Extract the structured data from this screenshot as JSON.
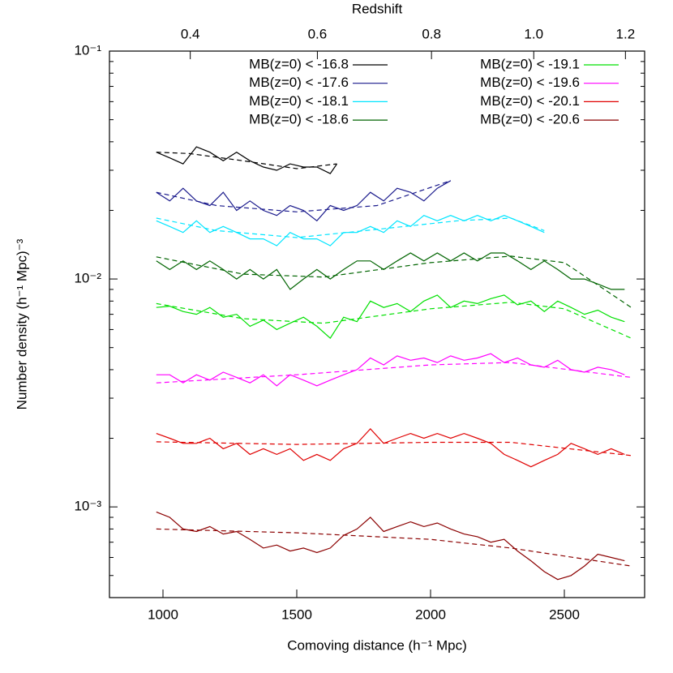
{
  "chart_data": {
    "type": "line",
    "title": "Redshift",
    "xlabel": "Comoving distance (h⁻¹ Mpc)",
    "ylabel": "Number density (h⁻¹ Mpc)⁻³",
    "xlim": [
      800,
      2800
    ],
    "xticks": [
      1000,
      1500,
      2000,
      2500
    ],
    "x2ticks": [
      0.4,
      0.6,
      0.8,
      {
        "value": 1,
        "label": "1.0"
      },
      1.2
    ],
    "ylim": [
      0.0004,
      0.1
    ],
    "log_y": true,
    "yticks": [
      {
        "value": 0.1,
        "label": "10⁻¹"
      },
      {
        "value": 0.01,
        "label": "10⁻²"
      },
      {
        "value": 0.001,
        "label": "10⁻³"
      }
    ],
    "yminorticks": [
      0.0005,
      0.0006,
      0.0007,
      0.0008,
      0.0009,
      0.002,
      0.003,
      0.004,
      0.005,
      0.006,
      0.007,
      0.008,
      0.009,
      0.02,
      0.03,
      0.04,
      0.05,
      0.06,
      0.07,
      0.08,
      0.09
    ],
    "legend": "top",
    "series": [
      {
        "name": "MB(z=0)  < -16.8",
        "color": "#000000",
        "x": [
          975,
          1025,
          1075,
          1125,
          1175,
          1225,
          1275,
          1325,
          1375,
          1425,
          1475,
          1525,
          1575,
          1625,
          1650
        ],
        "values": [
          0.036,
          0.034,
          0.032,
          0.038,
          0.036,
          0.033,
          0.036,
          0.033,
          0.031,
          0.03,
          0.032,
          0.031,
          0.031,
          0.029,
          0.032
        ]
      },
      {
        "name": "MB(z=0)  < -17.6",
        "color": "#1a1a8c",
        "x": [
          975,
          1025,
          1075,
          1125,
          1175,
          1225,
          1275,
          1325,
          1375,
          1425,
          1475,
          1525,
          1575,
          1625,
          1675,
          1725,
          1775,
          1825,
          1875,
          1925,
          1975,
          2025,
          2075
        ],
        "values": [
          0.024,
          0.022,
          0.025,
          0.022,
          0.021,
          0.024,
          0.02,
          0.022,
          0.02,
          0.019,
          0.021,
          0.02,
          0.018,
          0.021,
          0.02,
          0.021,
          0.024,
          0.022,
          0.025,
          0.024,
          0.022,
          0.025,
          0.027
        ]
      },
      {
        "name": "MB(z=0)  < -18.1",
        "color": "#00e5ff",
        "x": [
          975,
          1025,
          1075,
          1125,
          1175,
          1225,
          1275,
          1325,
          1375,
          1425,
          1475,
          1525,
          1575,
          1625,
          1675,
          1725,
          1775,
          1825,
          1875,
          1925,
          1975,
          2025,
          2075,
          2125,
          2175,
          2225,
          2275,
          2325,
          2375,
          2425
        ],
        "values": [
          0.018,
          0.017,
          0.016,
          0.018,
          0.016,
          0.017,
          0.016,
          0.015,
          0.015,
          0.014,
          0.016,
          0.015,
          0.015,
          0.014,
          0.016,
          0.016,
          0.017,
          0.016,
          0.018,
          0.017,
          0.019,
          0.018,
          0.019,
          0.018,
          0.019,
          0.018,
          0.019,
          0.018,
          0.017,
          0.016
        ]
      },
      {
        "name": "MB(z=0)  < -18.6",
        "color": "#006400",
        "x": [
          975,
          1025,
          1075,
          1125,
          1175,
          1225,
          1275,
          1325,
          1375,
          1425,
          1475,
          1525,
          1575,
          1625,
          1675,
          1725,
          1775,
          1825,
          1875,
          1925,
          1975,
          2025,
          2075,
          2125,
          2175,
          2225,
          2275,
          2325,
          2375,
          2425,
          2475,
          2525,
          2575,
          2625,
          2675,
          2725
        ],
        "values": [
          0.012,
          0.011,
          0.012,
          0.011,
          0.012,
          0.011,
          0.01,
          0.011,
          0.01,
          0.011,
          0.009,
          0.01,
          0.011,
          0.01,
          0.011,
          0.012,
          0.012,
          0.011,
          0.012,
          0.013,
          0.012,
          0.013,
          0.012,
          0.013,
          0.012,
          0.013,
          0.013,
          0.012,
          0.011,
          0.012,
          0.011,
          0.01,
          0.01,
          0.0095,
          0.009,
          0.009
        ]
      },
      {
        "name": "MB(z=0)  < -19.1",
        "color": "#00e000",
        "x": [
          975,
          1025,
          1075,
          1125,
          1175,
          1225,
          1275,
          1325,
          1375,
          1425,
          1475,
          1525,
          1575,
          1625,
          1675,
          1725,
          1775,
          1825,
          1875,
          1925,
          1975,
          2025,
          2075,
          2125,
          2175,
          2225,
          2275,
          2325,
          2375,
          2425,
          2475,
          2525,
          2575,
          2625,
          2675,
          2725
        ],
        "values": [
          0.0075,
          0.0076,
          0.0072,
          0.007,
          0.0075,
          0.0068,
          0.007,
          0.0062,
          0.0066,
          0.006,
          0.0064,
          0.0068,
          0.0062,
          0.0055,
          0.0068,
          0.0065,
          0.008,
          0.0075,
          0.0078,
          0.0072,
          0.008,
          0.0085,
          0.0075,
          0.008,
          0.0078,
          0.0082,
          0.0085,
          0.0077,
          0.008,
          0.0072,
          0.008,
          0.0075,
          0.007,
          0.0073,
          0.0068,
          0.0065
        ]
      },
      {
        "name": "MB(z=0)  < -19.6",
        "color": "#ff00ff",
        "x": [
          975,
          1025,
          1075,
          1125,
          1175,
          1225,
          1275,
          1325,
          1375,
          1425,
          1475,
          1525,
          1575,
          1625,
          1675,
          1725,
          1775,
          1825,
          1875,
          1925,
          1975,
          2025,
          2075,
          2125,
          2175,
          2225,
          2275,
          2325,
          2375,
          2425,
          2475,
          2525,
          2575,
          2625,
          2675,
          2725
        ],
        "values": [
          0.0038,
          0.0038,
          0.0035,
          0.0038,
          0.0036,
          0.0039,
          0.0037,
          0.0035,
          0.0038,
          0.0034,
          0.0038,
          0.0036,
          0.0034,
          0.0036,
          0.0038,
          0.004,
          0.0045,
          0.0042,
          0.0046,
          0.0044,
          0.0045,
          0.0043,
          0.0046,
          0.0044,
          0.0045,
          0.0047,
          0.0043,
          0.0045,
          0.0042,
          0.0041,
          0.0044,
          0.004,
          0.0039,
          0.0041,
          0.004,
          0.0038
        ]
      },
      {
        "name": "MB(z=0)  < -20.1",
        "color": "#e00000",
        "x": [
          975,
          1025,
          1075,
          1125,
          1175,
          1225,
          1275,
          1325,
          1375,
          1425,
          1475,
          1525,
          1575,
          1625,
          1675,
          1725,
          1775,
          1825,
          1875,
          1925,
          1975,
          2025,
          2075,
          2125,
          2175,
          2225,
          2275,
          2325,
          2375,
          2425,
          2475,
          2525,
          2575,
          2625,
          2675,
          2725
        ],
        "values": [
          0.0021,
          0.002,
          0.0019,
          0.0019,
          0.002,
          0.0018,
          0.0019,
          0.0017,
          0.0018,
          0.0017,
          0.0018,
          0.0016,
          0.0017,
          0.0016,
          0.0018,
          0.0019,
          0.0022,
          0.0019,
          0.002,
          0.0021,
          0.002,
          0.0021,
          0.002,
          0.0021,
          0.002,
          0.0019,
          0.0017,
          0.0016,
          0.0015,
          0.0016,
          0.0017,
          0.0019,
          0.0018,
          0.0017,
          0.0018,
          0.0017
        ]
      },
      {
        "name": "MB(z=0)  < -20.6",
        "color": "#8b0000",
        "x": [
          975,
          1025,
          1075,
          1125,
          1175,
          1225,
          1275,
          1325,
          1375,
          1425,
          1475,
          1525,
          1575,
          1625,
          1675,
          1725,
          1775,
          1825,
          1875,
          1925,
          1975,
          2025,
          2075,
          2125,
          2175,
          2225,
          2275,
          2325,
          2375,
          2425,
          2475,
          2525,
          2575,
          2625,
          2675,
          2725
        ],
        "values": [
          0.00095,
          0.0009,
          0.0008,
          0.00078,
          0.00082,
          0.00076,
          0.00078,
          0.00072,
          0.00066,
          0.00068,
          0.00064,
          0.00066,
          0.00063,
          0.00066,
          0.00075,
          0.0008,
          0.0009,
          0.00078,
          0.00082,
          0.00086,
          0.00082,
          0.00085,
          0.0008,
          0.00076,
          0.00074,
          0.0007,
          0.00072,
          0.00064,
          0.00058,
          0.00052,
          0.00048,
          0.0005,
          0.00055,
          0.00062,
          0.0006,
          0.00058
        ]
      }
    ],
    "fits": [
      {
        "color": "#000000",
        "x": [
          975,
          1100,
          1300,
          1500,
          1650
        ],
        "values": [
          0.036,
          0.0355,
          0.033,
          0.0305,
          0.032
        ]
      },
      {
        "color": "#1a1a8c",
        "x": [
          975,
          1200,
          1500,
          1800,
          2075
        ],
        "values": [
          0.024,
          0.021,
          0.0197,
          0.021,
          0.027
        ]
      },
      {
        "color": "#00e5ff",
        "x": [
          975,
          1200,
          1500,
          1800,
          2100,
          2300,
          2425
        ],
        "values": [
          0.0185,
          0.0163,
          0.0152,
          0.0165,
          0.018,
          0.0185,
          0.0163
        ]
      },
      {
        "color": "#006400",
        "x": [
          975,
          1300,
          1600,
          2000,
          2300,
          2500,
          2750
        ],
        "values": [
          0.0125,
          0.0105,
          0.0102,
          0.0118,
          0.0126,
          0.0118,
          0.0075
        ]
      },
      {
        "color": "#00e000",
        "x": [
          975,
          1300,
          1600,
          2000,
          2300,
          2500,
          2750
        ],
        "values": [
          0.0078,
          0.0067,
          0.0064,
          0.0074,
          0.0079,
          0.0074,
          0.0055
        ]
      },
      {
        "color": "#ff00ff",
        "x": [
          975,
          1500,
          2000,
          2300,
          2750
        ],
        "values": [
          0.0035,
          0.0038,
          0.0042,
          0.0043,
          0.0037
        ]
      },
      {
        "color": "#e00000",
        "x": [
          975,
          1500,
          2000,
          2300,
          2750
        ],
        "values": [
          0.00193,
          0.00188,
          0.00192,
          0.00192,
          0.00168
        ]
      },
      {
        "color": "#8b0000",
        "x": [
          975,
          1500,
          2000,
          2300,
          2750
        ],
        "values": [
          0.0008,
          0.00077,
          0.00072,
          0.00066,
          0.00055
        ]
      }
    ]
  }
}
